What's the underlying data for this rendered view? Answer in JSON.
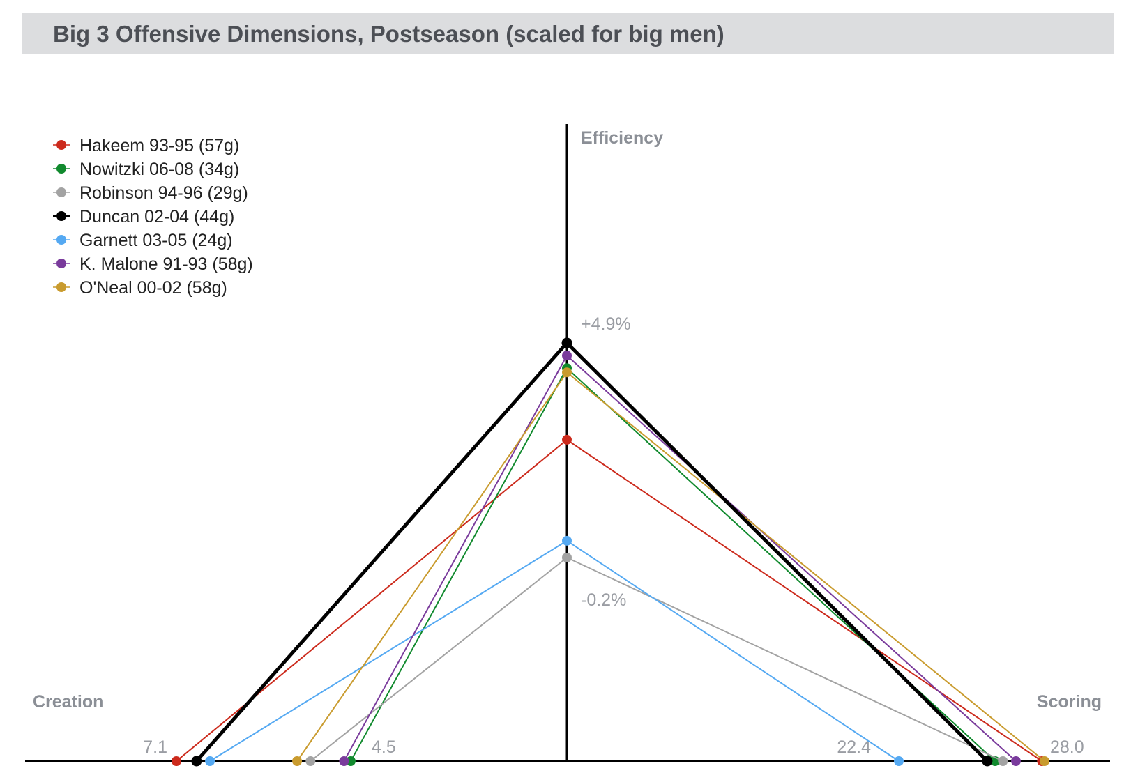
{
  "header": {
    "title": "Big 3 Offensive Dimensions, Postseason (scaled for big men)"
  },
  "chart_data": {
    "type": "line",
    "title": "Big 3 Offensive Dimensions, Postseason (scaled for big men)",
    "axes": {
      "efficiency": {
        "label": "Efficiency",
        "min": -0.2,
        "max": 4.9,
        "tick_labels": [
          "+4.9%",
          "-0.2%"
        ]
      },
      "creation": {
        "label": "Creation",
        "min": 4.5,
        "max": 7.1,
        "tick_labels": [
          "7.1",
          "4.5"
        ]
      },
      "scoring": {
        "label": "Scoring",
        "min": 22.4,
        "max": 28.0,
        "tick_labels": [
          "22.4",
          "28.0"
        ]
      }
    },
    "legend_position": "top-left",
    "series": [
      {
        "name": "Hakeem 93-95 (57g)",
        "color": "#cc2a1c",
        "creation": 7.1,
        "efficiency": 2.6,
        "scoring": 27.9,
        "bold": false
      },
      {
        "name": "Nowitzki 06-08 (34g)",
        "color": "#118a2e",
        "creation": 4.5,
        "efficiency": 4.3,
        "scoring": 26.1,
        "bold": false
      },
      {
        "name": "Robinson 94-96 (29g)",
        "color": "#a3a3a3",
        "creation": 5.1,
        "efficiency": -0.2,
        "scoring": 26.4,
        "bold": false
      },
      {
        "name": "Duncan 02-04 (44g)",
        "color": "#000000",
        "creation": 6.8,
        "efficiency": 4.9,
        "scoring": 25.8,
        "bold": true
      },
      {
        "name": "Garnett 03-05 (24g)",
        "color": "#55a9f2",
        "creation": 6.6,
        "efficiency": 0.2,
        "scoring": 22.4,
        "bold": false
      },
      {
        "name": "K. Malone 91-93 (58g)",
        "color": "#7a3b9c",
        "creation": 4.6,
        "efficiency": 4.6,
        "scoring": 26.9,
        "bold": false
      },
      {
        "name": "O'Neal 00-02 (58g)",
        "color": "#c99b2e",
        "creation": 5.3,
        "efficiency": 4.2,
        "scoring": 28.0,
        "bold": false
      }
    ]
  }
}
